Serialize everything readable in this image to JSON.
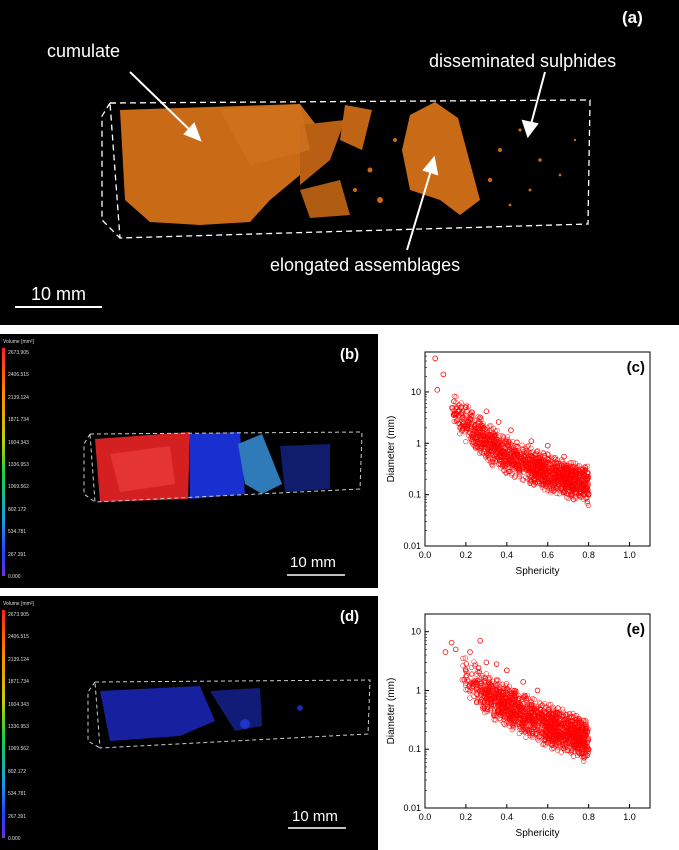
{
  "panel_a": {
    "tag": "(a)",
    "annotations": {
      "cumulate": "cumulate",
      "disseminated": "disseminated sulphides",
      "elongated": "elongated assemblages"
    },
    "scale_bar": "10 mm",
    "colors": {
      "sample": "#c96a17",
      "background": "#000000"
    }
  },
  "panel_b": {
    "tag": "(b)",
    "scale_bar": "10 mm",
    "legend_title": "Volume [mm³]",
    "legend_ticks": [
      "2673.905",
      "2406.515",
      "2139.124",
      "1871.734",
      "1604.343",
      "1336.953",
      "1069.562",
      "802.172",
      "534.781",
      "267.391",
      "0.000"
    ]
  },
  "panel_d": {
    "tag": "(d)",
    "scale_bar": "10 mm",
    "legend_title": "Volume [mm³]",
    "legend_ticks": [
      "2673.905",
      "2406.515",
      "2139.124",
      "1871.734",
      "1604.343",
      "1336.953",
      "1069.562",
      "802.172",
      "534.781",
      "267.391",
      "0.000"
    ]
  },
  "chart_data": [
    {
      "id": "c",
      "tag": "(c)",
      "type": "scatter",
      "xlabel": "Sphericity",
      "ylabel": "Diameter (mm)",
      "xlim": [
        0.0,
        1.1
      ],
      "ylim": [
        0.01,
        60
      ],
      "yscale": "log",
      "x_ticks": [
        "0.0",
        "0.2",
        "0.4",
        "0.6",
        "0.8",
        "1.0"
      ],
      "y_ticks": [
        "0.01",
        "0.1",
        "1",
        "10"
      ],
      "marker_color": "#ff0000",
      "trend": [
        [
          0.05,
          35
        ],
        [
          0.1,
          8
        ],
        [
          0.15,
          4
        ],
        [
          0.2,
          2.5
        ],
        [
          0.25,
          1.6
        ],
        [
          0.3,
          1.1
        ],
        [
          0.35,
          0.8
        ],
        [
          0.4,
          0.6
        ],
        [
          0.45,
          0.48
        ],
        [
          0.5,
          0.38
        ],
        [
          0.55,
          0.32
        ],
        [
          0.6,
          0.27
        ],
        [
          0.65,
          0.23
        ],
        [
          0.7,
          0.2
        ],
        [
          0.75,
          0.18
        ],
        [
          0.8,
          0.15
        ]
      ],
      "outliers": [
        [
          0.05,
          45
        ],
        [
          0.06,
          11
        ],
        [
          0.09,
          22
        ],
        [
          0.14,
          3.6
        ],
        [
          0.2,
          5
        ],
        [
          0.23,
          4
        ],
        [
          0.27,
          3.2
        ],
        [
          0.3,
          4.2
        ],
        [
          0.36,
          2.6
        ],
        [
          0.42,
          1.8
        ],
        [
          0.52,
          1.1
        ],
        [
          0.6,
          0.9
        ],
        [
          0.68,
          0.55
        ],
        [
          0.75,
          0.3
        ],
        [
          0.8,
          0.1
        ]
      ]
    },
    {
      "id": "e",
      "tag": "(e)",
      "type": "scatter",
      "xlabel": "Sphericity",
      "ylabel": "Diameter (mm)",
      "xlim": [
        0.0,
        1.1
      ],
      "ylim": [
        0.01,
        20
      ],
      "yscale": "log",
      "x_ticks": [
        "0.0",
        "0.2",
        "0.4",
        "0.6",
        "0.8",
        "1.0"
      ],
      "y_ticks": [
        "0.01",
        "0.1",
        "1",
        "10"
      ],
      "marker_color": "#ff0000",
      "trend": [
        [
          0.1,
          4
        ],
        [
          0.15,
          2.8
        ],
        [
          0.2,
          1.8
        ],
        [
          0.25,
          1.2
        ],
        [
          0.3,
          0.9
        ],
        [
          0.35,
          0.7
        ],
        [
          0.4,
          0.55
        ],
        [
          0.45,
          0.45
        ],
        [
          0.5,
          0.36
        ],
        [
          0.55,
          0.3
        ],
        [
          0.6,
          0.26
        ],
        [
          0.65,
          0.22
        ],
        [
          0.7,
          0.19
        ],
        [
          0.75,
          0.17
        ],
        [
          0.8,
          0.13
        ]
      ],
      "outliers": [
        [
          0.1,
          4.5
        ],
        [
          0.13,
          6.5
        ],
        [
          0.15,
          5
        ],
        [
          0.22,
          4.5
        ],
        [
          0.27,
          7
        ],
        [
          0.3,
          3
        ],
        [
          0.35,
          2.8
        ],
        [
          0.4,
          2.2
        ],
        [
          0.48,
          1.4
        ],
        [
          0.55,
          1
        ],
        [
          0.65,
          0.5
        ],
        [
          0.72,
          0.3
        ],
        [
          0.8,
          0.1
        ]
      ]
    }
  ]
}
